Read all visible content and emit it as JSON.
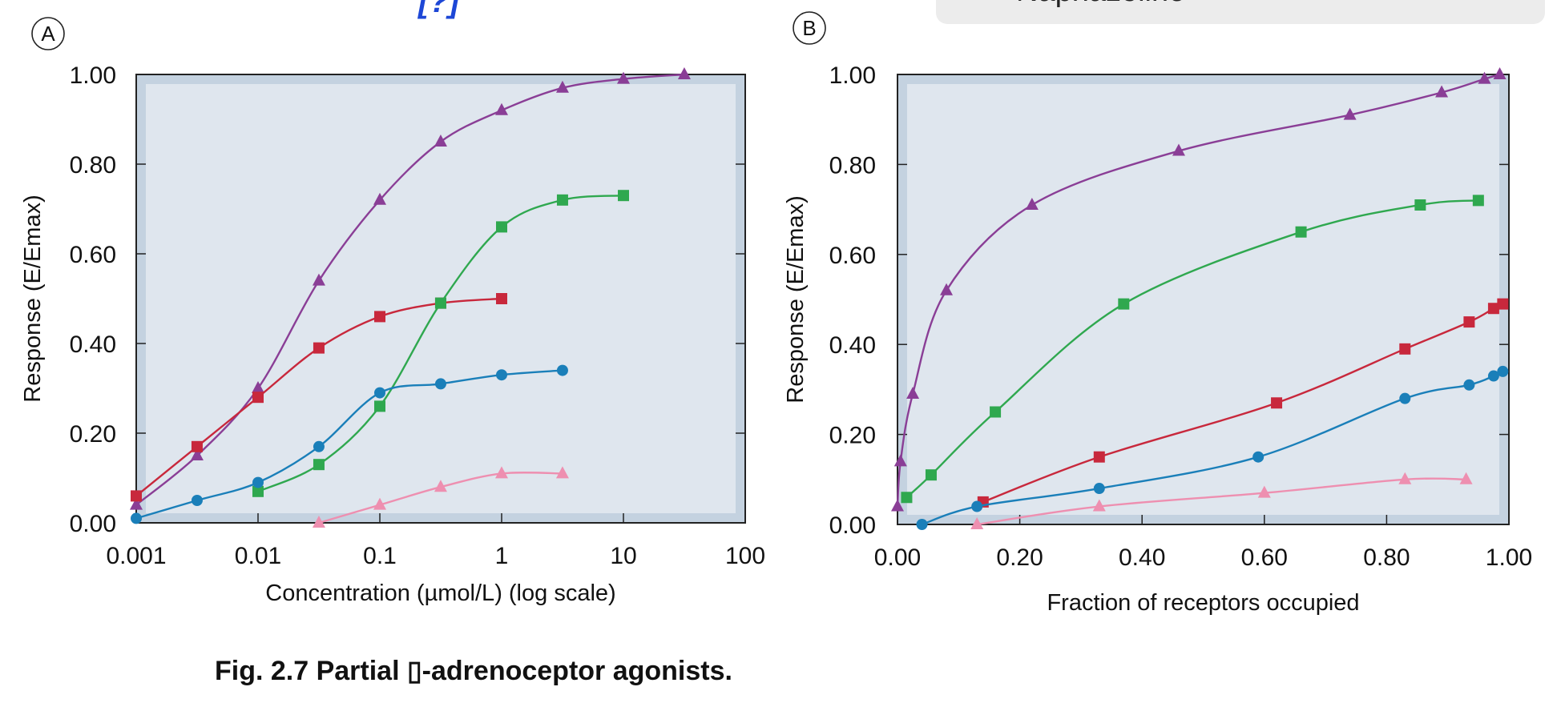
{
  "caption": "Fig. 2.7 Partial ▯-adrenoceptor agonists.",
  "legend_fragment": {
    "label": "Naphazoline",
    "color": "#c8283c"
  },
  "title_fragment": "[?]",
  "colors": {
    "plot_bg": "#dfe6ee",
    "plot_border": "#c4d2e0",
    "blue": "#1a7fb9",
    "green": "#2fa84f",
    "red": "#c8283c",
    "purple": "#8a3e96",
    "pink": "#ee8fb0"
  },
  "chart_data": [
    {
      "type": "line",
      "panel_label": "A",
      "xlabel": "Concentration (µmol/L) (log scale)",
      "ylabel": "Response (E/Emax)",
      "xscale": "log",
      "xlim": [
        0.001,
        100
      ],
      "ylim": [
        0,
        1
      ],
      "xticks": [
        "0.001",
        "0.01",
        "0.1",
        "1",
        "10",
        "100"
      ],
      "yticks": [
        "0.00",
        "0.20",
        "0.40",
        "0.60",
        "0.80",
        "1.00"
      ],
      "series": [
        {
          "color": "#8a3e96",
          "marker": "triangle",
          "x": [
            0.001,
            0.00316,
            0.01,
            0.0316,
            0.1,
            0.316,
            1,
            3.16,
            10,
            31.6
          ],
          "y": [
            0.04,
            0.15,
            0.3,
            0.54,
            0.72,
            0.85,
            0.92,
            0.97,
            0.99,
            1.0
          ]
        },
        {
          "color": "#c8283c",
          "marker": "square",
          "x": [
            0.001,
            0.00316,
            0.01,
            0.0316,
            0.1,
            0.316,
            1
          ],
          "y": [
            0.06,
            0.17,
            0.28,
            0.39,
            0.46,
            0.49,
            0.5
          ]
        },
        {
          "color": "#2fa84f",
          "marker": "square",
          "x": [
            0.01,
            0.0316,
            0.1,
            0.316,
            1,
            3.16,
            10
          ],
          "y": [
            0.07,
            0.13,
            0.26,
            0.49,
            0.66,
            0.72,
            0.73
          ]
        },
        {
          "color": "#1a7fb9",
          "marker": "circle",
          "x": [
            0.001,
            0.00316,
            0.01,
            0.0316,
            0.1,
            0.316,
            1,
            3.16
          ],
          "y": [
            0.01,
            0.05,
            0.09,
            0.17,
            0.29,
            0.31,
            0.33,
            0.34
          ]
        },
        {
          "color": "#ee8fb0",
          "marker": "triangle",
          "x": [
            0.0316,
            0.1,
            0.316,
            1,
            3.16
          ],
          "y": [
            0.0,
            0.04,
            0.08,
            0.11,
            0.11
          ]
        }
      ]
    },
    {
      "type": "line",
      "panel_label": "B",
      "xlabel": "Fraction of receptors occupied",
      "ylabel": "Response (E/Emax)",
      "xscale": "linear",
      "xlim": [
        0,
        1
      ],
      "ylim": [
        0,
        1
      ],
      "xticks": [
        "0.00",
        "0.20",
        "0.40",
        "0.60",
        "0.80",
        "1.00"
      ],
      "yticks": [
        "0.00",
        "0.20",
        "0.40",
        "0.60",
        "0.80",
        "1.00"
      ],
      "series": [
        {
          "color": "#8a3e96",
          "marker": "triangle",
          "x": [
            0.0,
            0.005,
            0.025,
            0.08,
            0.22,
            0.46,
            0.74,
            0.89,
            0.96,
            0.985
          ],
          "y": [
            0.04,
            0.14,
            0.29,
            0.52,
            0.71,
            0.83,
            0.91,
            0.96,
            0.99,
            1.0
          ]
        },
        {
          "color": "#2fa84f",
          "marker": "square",
          "x": [
            0.015,
            0.055,
            0.16,
            0.37,
            0.66,
            0.855,
            0.95
          ],
          "y": [
            0.06,
            0.11,
            0.25,
            0.49,
            0.65,
            0.71,
            0.72
          ]
        },
        {
          "color": "#c8283c",
          "marker": "square",
          "x": [
            0.14,
            0.33,
            0.62,
            0.83,
            0.935,
            0.975,
            0.99
          ],
          "y": [
            0.05,
            0.15,
            0.27,
            0.39,
            0.45,
            0.48,
            0.49
          ]
        },
        {
          "color": "#1a7fb9",
          "marker": "circle",
          "x": [
            0.04,
            0.13,
            0.33,
            0.59,
            0.83,
            0.935,
            0.975,
            0.99
          ],
          "y": [
            0.0,
            0.04,
            0.08,
            0.15,
            0.28,
            0.31,
            0.33,
            0.34
          ]
        },
        {
          "color": "#ee8fb0",
          "marker": "triangle",
          "x": [
            0.13,
            0.33,
            0.6,
            0.83,
            0.93
          ],
          "y": [
            0.0,
            0.04,
            0.07,
            0.1,
            0.1
          ]
        }
      ]
    }
  ]
}
